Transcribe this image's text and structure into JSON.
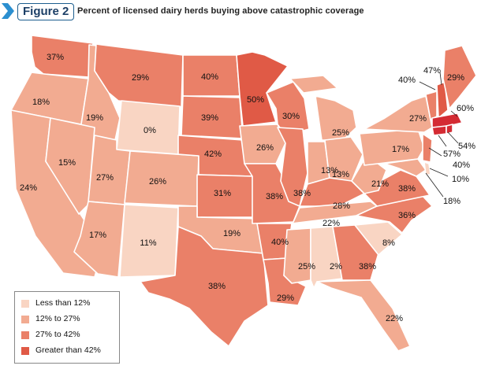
{
  "figure_label": "Figure 2",
  "title": "Percent of licensed dairy herds buying above catastrophic coverage",
  "colors": {
    "lt12": "#f9d5c3",
    "12to27": "#f2ab91",
    "27to42": "#ea8068",
    "gt42": "#e05a46",
    "header_blue": "#1c5e8e",
    "deep_red": "#d42b33"
  },
  "legend": [
    {
      "label": "Less than 12%",
      "color": "#f9d5c3"
    },
    {
      "label": "12% to 27%",
      "color": "#f2ab91"
    },
    {
      "label": "27% to 42%",
      "color": "#ea8068"
    },
    {
      "label": "Greater than 42%",
      "color": "#e05a46"
    }
  ],
  "states": {
    "WA": "37%",
    "OR": "18%",
    "CA": "24%",
    "ID": "19%",
    "NV": "15%",
    "MT": "29%",
    "WY": "0%",
    "UT": "27%",
    "AZ": "17%",
    "CO": "26%",
    "NM": "11%",
    "ND": "40%",
    "SD": "39%",
    "NE": "42%",
    "KS": "31%",
    "OK": "19%",
    "TX": "38%",
    "MN": "50%",
    "IA": "26%",
    "MO": "38%",
    "AR": "40%",
    "LA": "29%",
    "WI": "30%",
    "IL": "38%",
    "MI": "25%",
    "IN": "13%",
    "OH": "13%",
    "KY": "28%",
    "TN": "22%",
    "MS": "25%",
    "AL": "2%",
    "GA": "38%",
    "FL": "22%",
    "SC": "8%",
    "NC": "36%",
    "VA": "38%",
    "WV": "21%",
    "PA": "17%",
    "NY": "27%",
    "ME": "29%",
    "NH": "47%",
    "VT": "40%",
    "MA": "60%",
    "CT": "54%",
    "RI": "57%",
    "NJ": "40%",
    "DE": "10%",
    "MD": "18%"
  }
}
